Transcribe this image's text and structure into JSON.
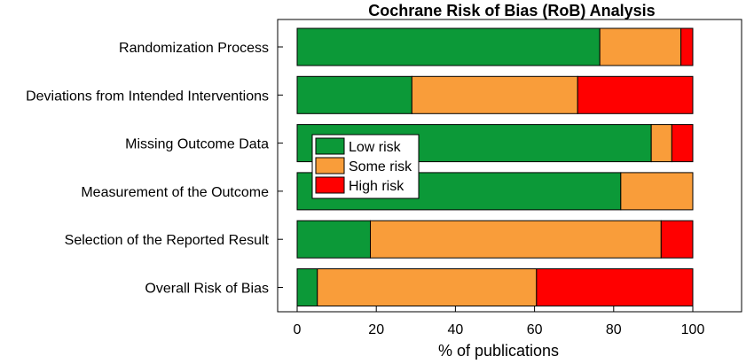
{
  "chart_data": {
    "type": "bar",
    "orientation": "horizontal",
    "stacked": true,
    "title": "Cochrane Risk of Bias (RoB) Analysis",
    "xlabel": "% of publications",
    "ylabel": "",
    "xlim": [
      0,
      115
    ],
    "xticks": [
      "0",
      "20",
      "40",
      "60",
      "80",
      "100"
    ],
    "grid": false,
    "legend_position": "center-left",
    "categories": [
      "Randomization Process",
      "Deviations from Intended Interventions",
      "Missing Outcome Data",
      "Measurement of the Outcome",
      "Selection of the Reported Result",
      "Overall Risk of Bias"
    ],
    "series": [
      {
        "name": "Low risk",
        "color": "#0c9938",
        "values": [
          76.5,
          29.0,
          89.5,
          81.8,
          18.5,
          5.1
        ]
      },
      {
        "name": "Some risk",
        "color": "#f99d3a",
        "values": [
          20.5,
          41.9,
          5.2,
          18.2,
          73.5,
          55.4
        ]
      },
      {
        "name": "High risk",
        "color": "#ff0000",
        "values": [
          3.0,
          29.1,
          5.3,
          0.0,
          8.0,
          39.5
        ]
      }
    ]
  }
}
